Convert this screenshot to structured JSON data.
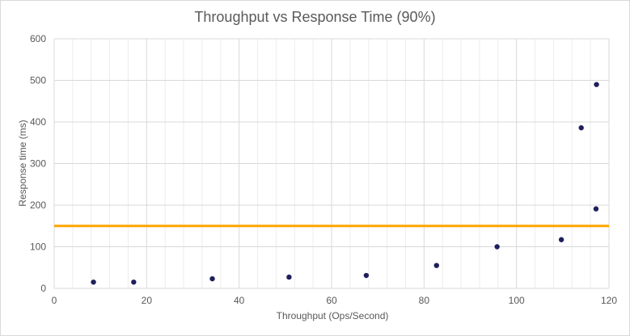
{
  "chart_data": {
    "type": "scatter",
    "title": "Throughput vs Response Time (90%)",
    "xlabel": "Throughput (Ops/Second)",
    "ylabel": "Response time (ms)",
    "xlim": [
      0,
      120
    ],
    "ylim": [
      0,
      600
    ],
    "x_ticks": [
      0,
      20,
      40,
      60,
      80,
      100,
      120
    ],
    "y_ticks": [
      0,
      100,
      200,
      300,
      400,
      500,
      600
    ],
    "x_minor_step": 4,
    "grid": true,
    "legend": "none",
    "series": [
      {
        "color": "#1f1f5c",
        "points": [
          {
            "x": 8.5,
            "y": 15
          },
          {
            "x": 17.2,
            "y": 15
          },
          {
            "x": 34.2,
            "y": 23
          },
          {
            "x": 50.8,
            "y": 27
          },
          {
            "x": 67.5,
            "y": 31
          },
          {
            "x": 82.7,
            "y": 55
          },
          {
            "x": 95.8,
            "y": 100
          },
          {
            "x": 109.7,
            "y": 117
          },
          {
            "x": 114.0,
            "y": 386
          },
          {
            "x": 117.3,
            "y": 490
          },
          {
            "x": 117.2,
            "y": 191
          }
        ]
      }
    ],
    "reference_line": {
      "y": 150,
      "color": "#ffa500"
    }
  },
  "colors": {
    "grid_major": "#d9d9d9",
    "grid_minor": "#ededed",
    "text": "#595959"
  }
}
